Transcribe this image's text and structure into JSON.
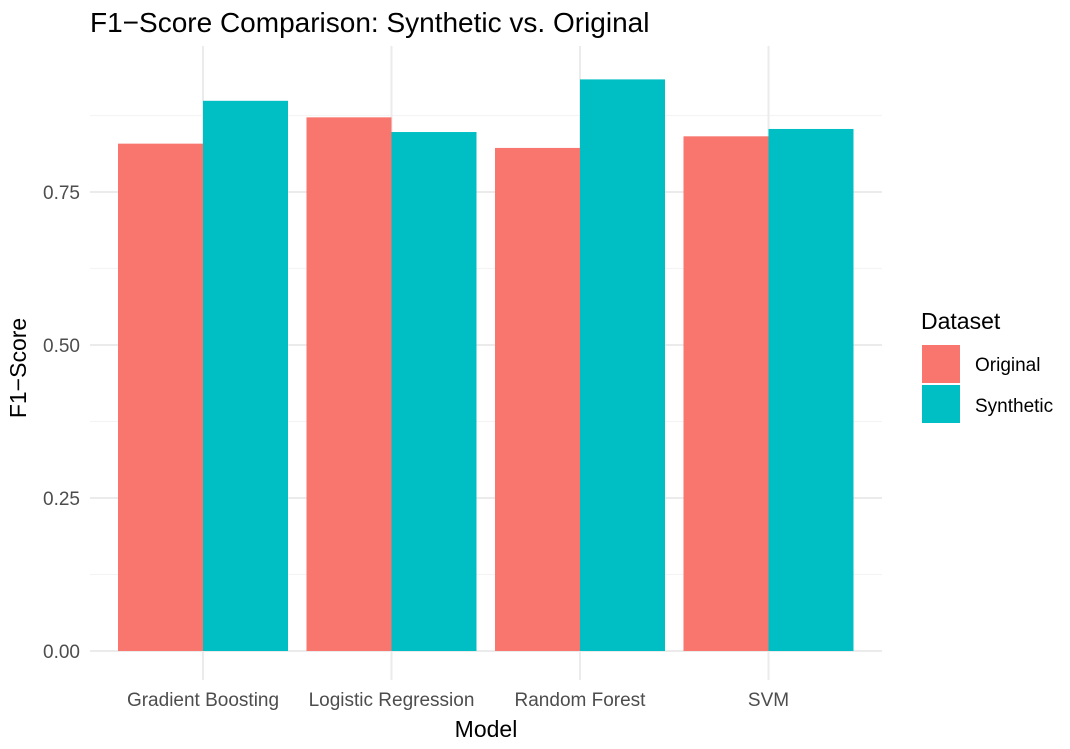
{
  "chart_data": {
    "type": "bar",
    "title": "F1−Score Comparison: Synthetic vs. Original",
    "xlabel": "Model",
    "ylabel": "F1−Score",
    "categories": [
      "Gradient Boosting",
      "Logistic Regression",
      "Random Forest",
      "SVM"
    ],
    "series": [
      {
        "name": "Original",
        "color": "#F8766D",
        "values": [
          0.829,
          0.872,
          0.822,
          0.841
        ]
      },
      {
        "name": "Synthetic",
        "color": "#00BFC4",
        "values": [
          0.899,
          0.848,
          0.934,
          0.853
        ]
      }
    ],
    "ylim": [
      0,
      0.94
    ],
    "yticks": [
      0,
      0.25,
      0.5,
      0.75
    ],
    "ytick_labels": [
      "0.00",
      "0.25",
      "0.50",
      "0.75"
    ],
    "grid": true,
    "legend": {
      "title": "Dataset",
      "position": "right"
    }
  }
}
